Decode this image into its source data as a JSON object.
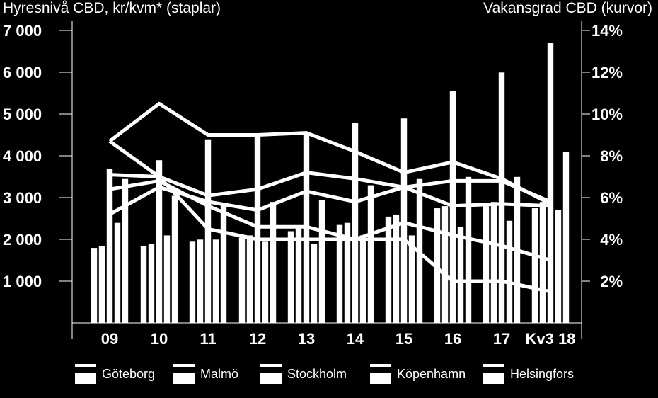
{
  "chart_data": {
    "type": "bar",
    "title_left": "Hyresnivå CBD, kr/kvm* (staplar)",
    "title_right": "Vakansgrad CBD (kurvor)",
    "categories": [
      "09",
      "10",
      "11",
      "12",
      "13",
      "14",
      "15",
      "16",
      "17",
      "Kv3 18"
    ],
    "y_left": {
      "ticks": [
        "7 000",
        "6 000",
        "5 000",
        "4 000",
        "3 000",
        "2 000",
        "1 000"
      ],
      "range": [
        0,
        7000
      ]
    },
    "y_right": {
      "ticks": [
        "14%",
        "12%",
        "10%",
        "8%",
        "6%",
        "4%",
        "2%"
      ],
      "range": [
        0,
        14
      ]
    },
    "bar_series": [
      {
        "name": "Göteborg",
        "values": [
          1800,
          1850,
          1950,
          2050,
          2200,
          2350,
          2550,
          2750,
          2800,
          2750
        ]
      },
      {
        "name": "Malmö",
        "values": [
          1850,
          1900,
          2000,
          2100,
          2300,
          2400,
          2600,
          2800,
          2900,
          2900
        ]
      },
      {
        "name": "Stockholm",
        "values": [
          3700,
          3900,
          4400,
          4500,
          4550,
          4800,
          4900,
          5550,
          6000,
          6700
        ]
      },
      {
        "name": "Köpenhamn",
        "values": [
          2400,
          2100,
          2000,
          1950,
          1900,
          2100,
          2100,
          2300,
          2450,
          2700
        ]
      },
      {
        "name": "Helsingfors",
        "values": [
          3450,
          3050,
          2850,
          2900,
          2950,
          3300,
          3450,
          3500,
          3500,
          4100
        ]
      }
    ],
    "line_series": [
      {
        "name": "Stockholm",
        "values": [
          8.7,
          10.5,
          9.0,
          9.0,
          9.1,
          8.2,
          7.2,
          7.7,
          6.9,
          5.7
        ]
      },
      {
        "name": "Helsingfors",
        "values": [
          7.1,
          7.0,
          6.1,
          6.4,
          7.2,
          6.9,
          6.5,
          6.8,
          6.8,
          5.8
        ]
      },
      {
        "name": "Göteborg",
        "values": [
          8.7,
          7.0,
          4.5,
          4.0,
          4.0,
          4.0,
          4.0,
          2.0,
          2.0,
          1.5
        ]
      },
      {
        "name": "Malmö",
        "values": [
          5.2,
          6.5,
          5.8,
          5.4,
          6.3,
          5.8,
          6.5,
          5.6,
          5.7,
          5.6
        ]
      },
      {
        "name": "Köpenhamn",
        "values": [
          6.4,
          6.8,
          5.6,
          4.6,
          4.6,
          4.0,
          4.8,
          4.2,
          3.7,
          3.0
        ]
      }
    ],
    "grid": false
  },
  "legend": [
    {
      "label": "Göteborg"
    },
    {
      "label": "Malmö"
    },
    {
      "label": "Stockholm"
    },
    {
      "label": "Köpenhamn"
    },
    {
      "label": "Helsingfors"
    }
  ],
  "colors": {
    "background": "#000000",
    "foreground": "#ffffff"
  }
}
